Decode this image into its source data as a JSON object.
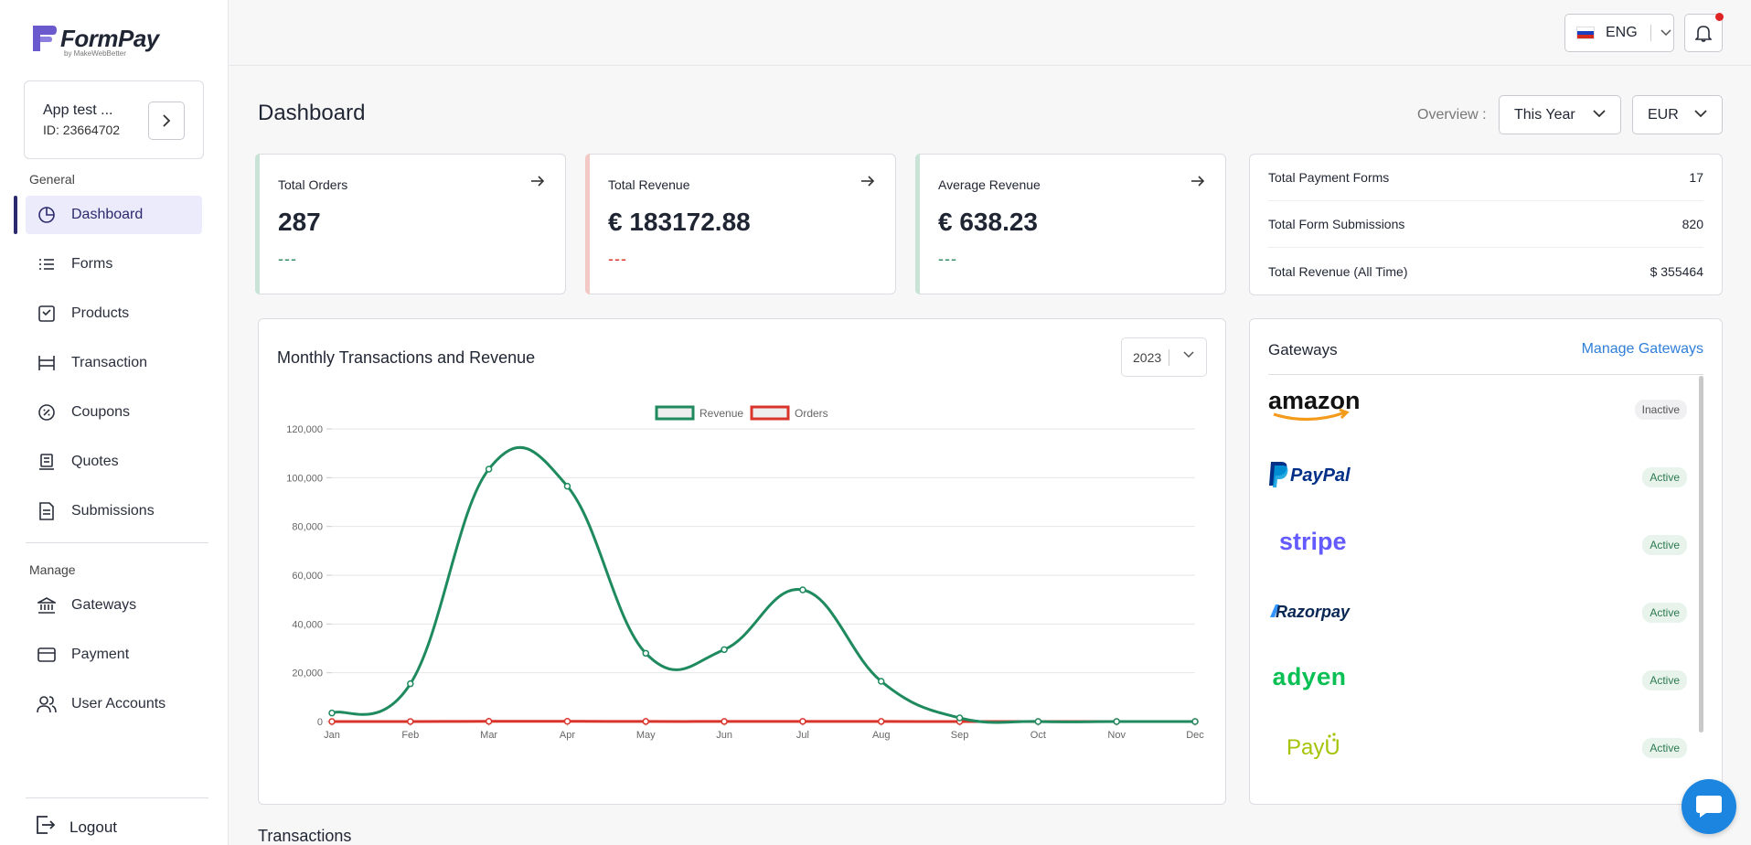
{
  "brand": {
    "name": "FormPay",
    "sub": "by MakeWebBetter"
  },
  "app": {
    "name": "App test ...",
    "id": "ID: 23664702"
  },
  "sidebar": {
    "general_label": "General",
    "manage_label": "Manage",
    "items": [
      {
        "label": "Dashboard",
        "icon": "pie-chart-icon"
      },
      {
        "label": "Forms",
        "icon": "list-icon"
      },
      {
        "label": "Products",
        "icon": "box-icon"
      },
      {
        "label": "Transaction",
        "icon": "transfer-icon"
      },
      {
        "label": "Coupons",
        "icon": "coupon-icon"
      },
      {
        "label": "Quotes",
        "icon": "quote-icon"
      },
      {
        "label": "Submissions",
        "icon": "document-icon"
      }
    ],
    "manage_items": [
      {
        "label": "Gateways",
        "icon": "bank-icon"
      },
      {
        "label": "Payment",
        "icon": "card-icon"
      },
      {
        "label": "User Accounts",
        "icon": "users-icon"
      }
    ],
    "logout": "Logout"
  },
  "topbar": {
    "language": "ENG"
  },
  "header": {
    "title": "Dashboard",
    "overview_label": "Overview :",
    "period": "This Year",
    "currency": "EUR"
  },
  "stats": [
    {
      "label": "Total Orders",
      "value": "287",
      "change": "---",
      "color": "#2e8a62",
      "accent": "#c9e4d7"
    },
    {
      "label": "Total Revenue",
      "value": "€ 183172.88",
      "change": "---",
      "color": "#d9342b",
      "accent": "#f3c9c6"
    },
    {
      "label": "Average Revenue",
      "value": "€ 638.23",
      "change": "---",
      "color": "#2e8a62",
      "accent": "#c9e4d7"
    }
  ],
  "totals": [
    {
      "label": "Total Payment Forms",
      "value": "17"
    },
    {
      "label": "Total Form Submissions",
      "value": "820"
    },
    {
      "label": "Total Revenue (All Time)",
      "value": "$ 355464"
    }
  ],
  "chart_data": {
    "type": "line",
    "title": "Monthly Transactions and Revenue",
    "year": "2023",
    "categories": [
      "Jan",
      "Feb",
      "Mar",
      "Apr",
      "May",
      "Jun",
      "Jul",
      "Aug",
      "Sep",
      "Oct",
      "Nov",
      "Dec"
    ],
    "series": [
      {
        "name": "Revenue",
        "color": "#1e8a5e",
        "values": [
          3500,
          15500,
          103500,
          96500,
          28000,
          29500,
          54000,
          16500,
          1500,
          0,
          0,
          0
        ]
      },
      {
        "name": "Orders",
        "color": "#d9342b",
        "values": [
          10,
          20,
          80,
          90,
          30,
          30,
          70,
          25,
          5,
          0,
          0,
          0
        ]
      }
    ],
    "ylim": [
      0,
      120000
    ],
    "yticks": [
      "0",
      "20,000",
      "40,000",
      "60,000",
      "80,000",
      "100,000",
      "120,000"
    ],
    "legend": "top",
    "grid": true
  },
  "gateways": {
    "title": "Gateways",
    "manage": "Manage Gateways",
    "items": [
      {
        "name": "amazon",
        "status": "Inactive",
        "kind": "inactive"
      },
      {
        "name": "PayPal",
        "status": "Active",
        "kind": "active"
      },
      {
        "name": "stripe",
        "status": "Active",
        "kind": "active"
      },
      {
        "name": "Razorpay",
        "status": "Active",
        "kind": "active"
      },
      {
        "name": "adyen",
        "status": "Active",
        "kind": "active"
      },
      {
        "name": "PayU",
        "status": "Active",
        "kind": "active"
      }
    ]
  },
  "transactions_title": "Transactions"
}
